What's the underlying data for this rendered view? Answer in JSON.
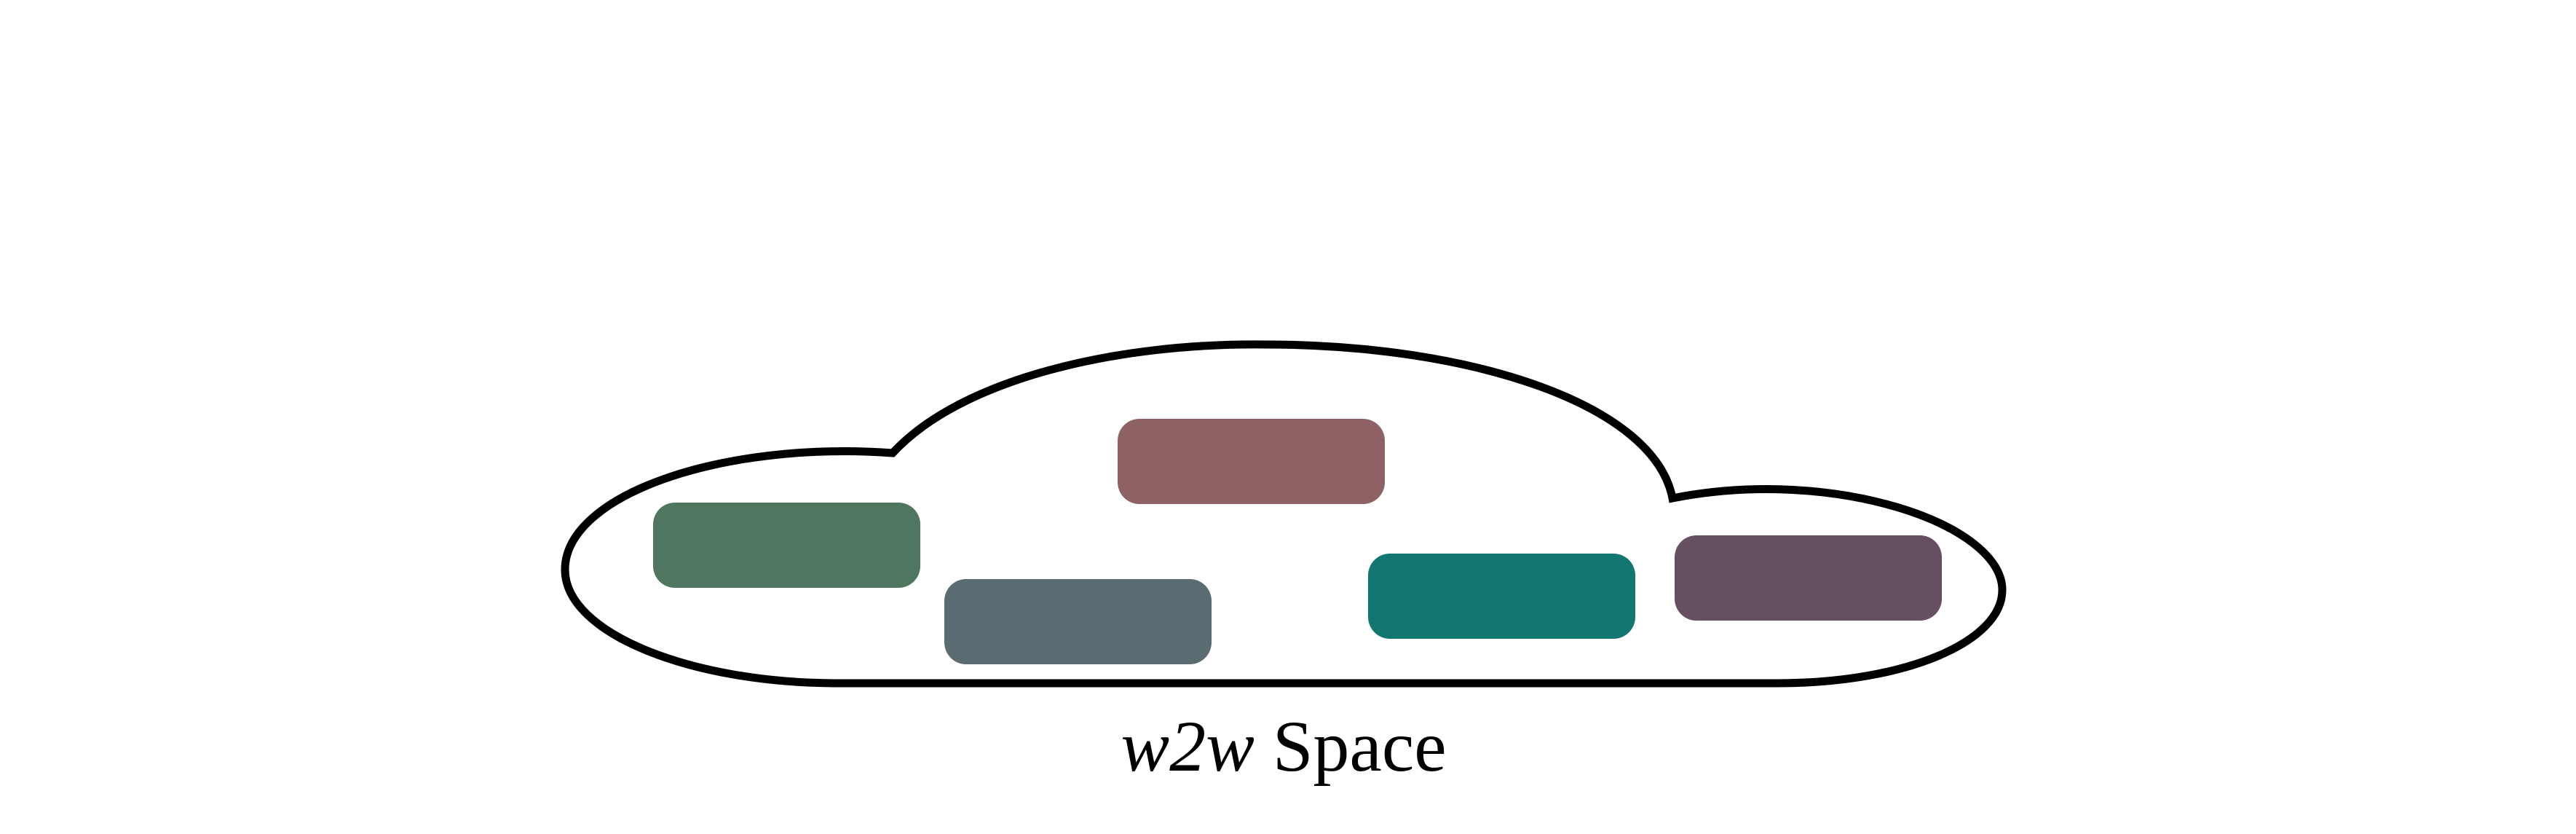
{
  "diagram": {
    "outline_color": "#000000",
    "caption": {
      "variable": "w2w",
      "rest": " Space"
    },
    "blocks": [
      {
        "id": "rose",
        "color": "#8e6264"
      },
      {
        "id": "green",
        "color": "#4f765f"
      },
      {
        "id": "slate",
        "color": "#5b6b72"
      },
      {
        "id": "teal",
        "color": "#127770"
      },
      {
        "id": "plum",
        "color": "#654f60"
      }
    ]
  }
}
